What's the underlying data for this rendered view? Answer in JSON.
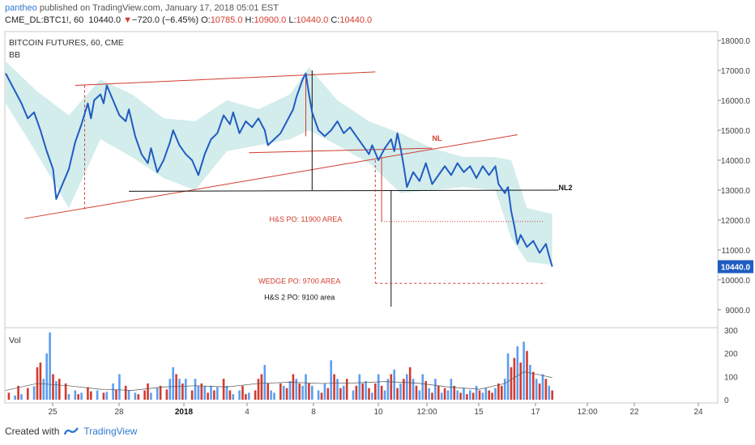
{
  "header": {
    "username": "pantheo",
    "published_text": "published on TradingView.com, January 17, 2018 05:01 EST",
    "symbol": "CME_DL:BTC1!, 60",
    "last": "10440.0",
    "change_arrow": "▼",
    "change": "−720.0 (−6.45%)",
    "o_label": "O:",
    "o_val": "10785.0",
    "h_label": "H:",
    "h_val": "10900.0",
    "l_label": "L:",
    "l_val": "10440.0",
    "c_label": "C:",
    "c_val": "10440.0"
  },
  "chart_data": {
    "type": "line",
    "title": "BITCOIN FUTURES, 60, CME",
    "indicator": "BB",
    "price_axis": {
      "ticks": [
        9000,
        10000,
        11000,
        12000,
        13000,
        14000,
        15000,
        16000,
        17000,
        18000
      ],
      "ylim": [
        8400,
        18300
      ]
    },
    "time_axis_labels": [
      "25",
      "28",
      "2018",
      "4",
      "8",
      "10",
      "12:00",
      "15",
      "17",
      "12:00",
      "22",
      "24"
    ],
    "last_price_label": "10440.0",
    "price_series": [
      [
        0,
        16900
      ],
      [
        3,
        16300
      ],
      [
        5,
        15900
      ],
      [
        7,
        15400
      ],
      [
        9,
        15600
      ],
      [
        11,
        15000
      ],
      [
        13,
        14300
      ],
      [
        15,
        13700
      ],
      [
        16,
        12700
      ],
      [
        18,
        13200
      ],
      [
        20,
        13700
      ],
      [
        22,
        14600
      ],
      [
        24,
        15200
      ],
      [
        26,
        15900
      ],
      [
        27,
        15400
      ],
      [
        28,
        16000
      ],
      [
        30,
        16200
      ],
      [
        31,
        15900
      ],
      [
        32,
        16500
      ],
      [
        34,
        16000
      ],
      [
        36,
        15500
      ],
      [
        38,
        15300
      ],
      [
        39,
        15700
      ],
      [
        41,
        14800
      ],
      [
        43,
        14200
      ],
      [
        45,
        13900
      ],
      [
        46,
        14400
      ],
      [
        48,
        13600
      ],
      [
        50,
        14000
      ],
      [
        52,
        14600
      ],
      [
        53,
        15000
      ],
      [
        55,
        14500
      ],
      [
        57,
        14200
      ],
      [
        59,
        14000
      ],
      [
        61,
        13500
      ],
      [
        63,
        14200
      ],
      [
        65,
        14700
      ],
      [
        67,
        14900
      ],
      [
        69,
        15500
      ],
      [
        71,
        15200
      ],
      [
        72,
        15600
      ],
      [
        74,
        14900
      ],
      [
        76,
        15300
      ],
      [
        78,
        15100
      ],
      [
        80,
        15400
      ],
      [
        82,
        15000
      ],
      [
        83,
        14500
      ],
      [
        85,
        14700
      ],
      [
        87,
        14900
      ],
      [
        89,
        15300
      ],
      [
        91,
        15700
      ],
      [
        92,
        16100
      ],
      [
        93,
        16400
      ],
      [
        94,
        16700
      ],
      [
        95,
        16900
      ],
      [
        96,
        16200
      ],
      [
        97,
        15600
      ],
      [
        99,
        15000
      ],
      [
        101,
        14800
      ],
      [
        103,
        15000
      ],
      [
        105,
        15300
      ],
      [
        107,
        14900
      ],
      [
        109,
        15100
      ],
      [
        111,
        14800
      ],
      [
        113,
        14500
      ],
      [
        115,
        14200
      ],
      [
        116,
        14500
      ],
      [
        118,
        14000
      ],
      [
        120,
        14400
      ],
      [
        122,
        14700
      ],
      [
        123,
        14300
      ],
      [
        124,
        14900
      ],
      [
        125,
        14400
      ],
      [
        126,
        13800
      ],
      [
        127,
        13100
      ],
      [
        129,
        13600
      ],
      [
        131,
        13300
      ],
      [
        133,
        13900
      ],
      [
        135,
        13200
      ],
      [
        137,
        13500
      ],
      [
        139,
        13800
      ],
      [
        141,
        13500
      ],
      [
        143,
        13900
      ],
      [
        145,
        13600
      ],
      [
        147,
        13800
      ],
      [
        149,
        13400
      ],
      [
        151,
        13800
      ],
      [
        153,
        13500
      ],
      [
        155,
        13800
      ],
      [
        156,
        13200
      ],
      [
        158,
        12900
      ],
      [
        159,
        13100
      ],
      [
        160,
        12300
      ],
      [
        161,
        11800
      ],
      [
        162,
        11200
      ],
      [
        163,
        11500
      ],
      [
        165,
        11100
      ],
      [
        167,
        11300
      ],
      [
        169,
        10900
      ],
      [
        171,
        11200
      ],
      [
        172,
        10800
      ],
      [
        173,
        10440
      ]
    ],
    "bands_upper": [
      [
        0,
        17300
      ],
      [
        10,
        16300
      ],
      [
        20,
        15500
      ],
      [
        30,
        16700
      ],
      [
        40,
        16200
      ],
      [
        50,
        15400
      ],
      [
        60,
        15300
      ],
      [
        70,
        16000
      ],
      [
        80,
        15700
      ],
      [
        90,
        16200
      ],
      [
        96,
        17100
      ],
      [
        105,
        16000
      ],
      [
        115,
        15300
      ],
      [
        125,
        14900
      ],
      [
        135,
        14400
      ],
      [
        145,
        14100
      ],
      [
        155,
        14100
      ],
      [
        160,
        14000
      ],
      [
        165,
        12400
      ],
      [
        173,
        12200
      ]
    ],
    "bands_lower": [
      [
        0,
        15900
      ],
      [
        10,
        14200
      ],
      [
        20,
        12400
      ],
      [
        30,
        14700
      ],
      [
        40,
        14100
      ],
      [
        50,
        13400
      ],
      [
        60,
        13000
      ],
      [
        70,
        14300
      ],
      [
        80,
        14500
      ],
      [
        90,
        14700
      ],
      [
        96,
        15000
      ],
      [
        105,
        14500
      ],
      [
        115,
        13900
      ],
      [
        125,
        12900
      ],
      [
        135,
        13000
      ],
      [
        145,
        13100
      ],
      [
        155,
        13000
      ],
      [
        160,
        11400
      ],
      [
        165,
        10600
      ],
      [
        173,
        10500
      ]
    ],
    "annotations": [
      {
        "text": "NL",
        "color": "#d23b2e",
        "at": [
          135,
          14650
        ]
      },
      {
        "text": "NL2",
        "color": "#111111",
        "at": [
          175,
          13000
        ]
      },
      {
        "text": "H&S PO: 11900 AREA",
        "color": "#d23b2e",
        "at": [
          95,
          11950
        ]
      },
      {
        "text": "WEDGE PO: 9700 AREA",
        "color": "#d23b2e",
        "at": [
          93,
          9880
        ]
      },
      {
        "text": "H&S 2 PO: 9100 area",
        "color": "#111111",
        "at": [
          93,
          9330
        ]
      }
    ],
    "volume_axis": {
      "label": "Vol",
      "ticks": [
        0,
        100,
        200,
        300
      ],
      "ylim": [
        0,
        300
      ]
    },
    "volume_bars": [
      [
        1,
        30,
        "r"
      ],
      [
        3,
        18,
        "b"
      ],
      [
        4,
        60,
        "r"
      ],
      [
        5,
        24,
        "b"
      ],
      [
        7,
        50,
        "r"
      ],
      [
        9,
        58,
        "b"
      ],
      [
        10,
        140,
        "r"
      ],
      [
        11,
        160,
        "r"
      ],
      [
        12,
        90,
        "b"
      ],
      [
        13,
        200,
        "b"
      ],
      [
        14,
        290,
        "b"
      ],
      [
        15,
        110,
        "r"
      ],
      [
        16,
        80,
        "b"
      ],
      [
        17,
        90,
        "r"
      ],
      [
        19,
        70,
        "r"
      ],
      [
        20,
        24,
        "b"
      ],
      [
        22,
        40,
        "b"
      ],
      [
        23,
        24,
        "r"
      ],
      [
        24,
        30,
        "b"
      ],
      [
        26,
        54,
        "r"
      ],
      [
        27,
        36,
        "r"
      ],
      [
        29,
        40,
        "b"
      ],
      [
        31,
        30,
        "r"
      ],
      [
        32,
        34,
        "b"
      ],
      [
        34,
        70,
        "b"
      ],
      [
        35,
        44,
        "r"
      ],
      [
        36,
        110,
        "b"
      ],
      [
        38,
        60,
        "r"
      ],
      [
        39,
        40,
        "b"
      ],
      [
        41,
        30,
        "b"
      ],
      [
        42,
        24,
        "r"
      ],
      [
        44,
        40,
        "r"
      ],
      [
        45,
        70,
        "r"
      ],
      [
        46,
        30,
        "b"
      ],
      [
        48,
        50,
        "b"
      ],
      [
        49,
        60,
        "r"
      ],
      [
        51,
        44,
        "r"
      ],
      [
        52,
        90,
        "b"
      ],
      [
        53,
        140,
        "b"
      ],
      [
        54,
        110,
        "r"
      ],
      [
        55,
        90,
        "b"
      ],
      [
        56,
        70,
        "r"
      ],
      [
        57,
        90,
        "b"
      ],
      [
        59,
        40,
        "r"
      ],
      [
        60,
        90,
        "b"
      ],
      [
        61,
        60,
        "b"
      ],
      [
        62,
        70,
        "r"
      ],
      [
        63,
        60,
        "b"
      ],
      [
        64,
        30,
        "r"
      ],
      [
        65,
        60,
        "b"
      ],
      [
        66,
        40,
        "r"
      ],
      [
        67,
        54,
        "b"
      ],
      [
        69,
        90,
        "r"
      ],
      [
        70,
        60,
        "b"
      ],
      [
        71,
        40,
        "r"
      ],
      [
        72,
        24,
        "b"
      ],
      [
        74,
        40,
        "b"
      ],
      [
        75,
        60,
        "r"
      ],
      [
        76,
        24,
        "r"
      ],
      [
        77,
        30,
        "b"
      ],
      [
        79,
        40,
        "r"
      ],
      [
        80,
        90,
        "r"
      ],
      [
        81,
        110,
        "r"
      ],
      [
        82,
        150,
        "b"
      ],
      [
        83,
        70,
        "r"
      ],
      [
        84,
        40,
        "b"
      ],
      [
        85,
        30,
        "b"
      ],
      [
        87,
        70,
        "r"
      ],
      [
        88,
        60,
        "b"
      ],
      [
        89,
        50,
        "r"
      ],
      [
        90,
        80,
        "b"
      ],
      [
        91,
        110,
        "r"
      ],
      [
        92,
        90,
        "b"
      ],
      [
        93,
        70,
        "r"
      ],
      [
        94,
        60,
        "b"
      ],
      [
        95,
        110,
        "b"
      ],
      [
        96,
        70,
        "r"
      ],
      [
        97,
        60,
        "b"
      ],
      [
        99,
        40,
        "b"
      ],
      [
        100,
        30,
        "r"
      ],
      [
        101,
        70,
        "b"
      ],
      [
        102,
        50,
        "r"
      ],
      [
        103,
        170,
        "b"
      ],
      [
        104,
        110,
        "r"
      ],
      [
        105,
        90,
        "b"
      ],
      [
        106,
        50,
        "r"
      ],
      [
        107,
        60,
        "b"
      ],
      [
        108,
        90,
        "r"
      ],
      [
        110,
        40,
        "b"
      ],
      [
        111,
        60,
        "r"
      ],
      [
        112,
        110,
        "b"
      ],
      [
        113,
        70,
        "r"
      ],
      [
        114,
        80,
        "b"
      ],
      [
        115,
        50,
        "r"
      ],
      [
        116,
        30,
        "b"
      ],
      [
        117,
        70,
        "r"
      ],
      [
        118,
        110,
        "b"
      ],
      [
        119,
        60,
        "r"
      ],
      [
        120,
        40,
        "b"
      ],
      [
        121,
        90,
        "b"
      ],
      [
        122,
        110,
        "r"
      ],
      [
        123,
        130,
        "b"
      ],
      [
        124,
        50,
        "r"
      ],
      [
        125,
        70,
        "b"
      ],
      [
        126,
        90,
        "r"
      ],
      [
        127,
        110,
        "b"
      ],
      [
        128,
        140,
        "r"
      ],
      [
        129,
        90,
        "b"
      ],
      [
        130,
        60,
        "r"
      ],
      [
        131,
        40,
        "b"
      ],
      [
        132,
        110,
        "b"
      ],
      [
        133,
        80,
        "r"
      ],
      [
        134,
        50,
        "b"
      ],
      [
        135,
        30,
        "r"
      ],
      [
        136,
        90,
        "b"
      ],
      [
        137,
        60,
        "r"
      ],
      [
        138,
        30,
        "b"
      ],
      [
        139,
        50,
        "r"
      ],
      [
        140,
        40,
        "b"
      ],
      [
        141,
        90,
        "b"
      ],
      [
        142,
        60,
        "r"
      ],
      [
        143,
        40,
        "b"
      ],
      [
        144,
        30,
        "r"
      ],
      [
        145,
        50,
        "b"
      ],
      [
        146,
        24,
        "r"
      ],
      [
        147,
        40,
        "b"
      ],
      [
        148,
        30,
        "r"
      ],
      [
        149,
        60,
        "b"
      ],
      [
        150,
        40,
        "r"
      ],
      [
        151,
        30,
        "b"
      ],
      [
        152,
        50,
        "b"
      ],
      [
        153,
        40,
        "r"
      ],
      [
        154,
        30,
        "r"
      ],
      [
        155,
        50,
        "b"
      ],
      [
        156,
        70,
        "r"
      ],
      [
        157,
        60,
        "r"
      ],
      [
        158,
        90,
        "b"
      ],
      [
        159,
        200,
        "b"
      ],
      [
        160,
        140,
        "r"
      ],
      [
        161,
        180,
        "r"
      ],
      [
        162,
        230,
        "b"
      ],
      [
        163,
        160,
        "r"
      ],
      [
        164,
        250,
        "b"
      ],
      [
        165,
        210,
        "r"
      ],
      [
        166,
        150,
        "b"
      ],
      [
        167,
        120,
        "r"
      ],
      [
        168,
        90,
        "b"
      ],
      [
        169,
        70,
        "r"
      ],
      [
        170,
        110,
        "b"
      ],
      [
        171,
        90,
        "r"
      ],
      [
        172,
        60,
        "b"
      ],
      [
        173,
        40,
        "r"
      ]
    ],
    "volume_ma": [
      [
        0,
        40
      ],
      [
        10,
        70
      ],
      [
        20,
        60
      ],
      [
        30,
        45
      ],
      [
        40,
        40
      ],
      [
        50,
        55
      ],
      [
        60,
        60
      ],
      [
        70,
        55
      ],
      [
        80,
        70
      ],
      [
        90,
        75
      ],
      [
        100,
        70
      ],
      [
        110,
        72
      ],
      [
        120,
        78
      ],
      [
        130,
        72
      ],
      [
        140,
        55
      ],
      [
        150,
        45
      ],
      [
        158,
        70
      ],
      [
        164,
        120
      ],
      [
        168,
        110
      ],
      [
        173,
        95
      ]
    ],
    "colors": {
      "price": "#1f5cc2",
      "bands": "#d3ecec",
      "up": "#5c9ef0",
      "down": "#d23b2e",
      "trend": "#d23b2e",
      "neckline": "#111111",
      "last_badge": "#1f5cc2"
    }
  },
  "footer": {
    "created_with": "Created with",
    "brand": "TradingView"
  }
}
